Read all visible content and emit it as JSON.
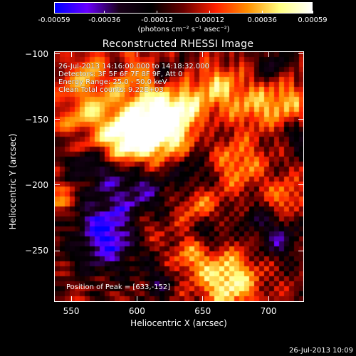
{
  "colorbar": {
    "colors": [
      "#0000ff",
      "#6a00ff",
      "#1a001a",
      "#000000",
      "#6a0000",
      "#ff2000",
      "#ff9000",
      "#ffff80",
      "#ffffff"
    ],
    "min": -0.00059,
    "max": 0.00059,
    "ticks": [
      {
        "value": -0.00059,
        "label": "-0.00059"
      },
      {
        "value": -0.00036,
        "label": "-0.00036"
      },
      {
        "value": -0.00012,
        "label": "-0.00012"
      },
      {
        "value": 0.00012,
        "label": "0.00012"
      },
      {
        "value": 0.00036,
        "label": "0.00036"
      },
      {
        "value": 0.00059,
        "label": "0.00059"
      }
    ],
    "units": "(photons cm⁻² s⁻¹ asec⁻²)"
  },
  "title": "Reconstructed RHESSI Image",
  "info": {
    "time_range": "26-Jul-2013 14:16:00.000 to 14:18:32.000",
    "detectors": "Detectors: 3F 5F 6F 7F 8F 9F, Att 0",
    "energy_range": "Energy Range: 25.0 - 50.0 keV",
    "clean": "Clean     Total counts: 9.22E+03"
  },
  "peak": {
    "label": "Position of Peak = [633,-152]"
  },
  "axes": {
    "xlabel": "Heliocentric X (arcsec)",
    "ylabel": "Heliocentric Y (arcsec)",
    "xlim": [
      537,
      727
    ],
    "ylim": [
      -289,
      -98
    ],
    "xticks": [
      {
        "value": 550,
        "label": "550"
      },
      {
        "value": 600,
        "label": "600"
      },
      {
        "value": 650,
        "label": "650"
      },
      {
        "value": 700,
        "label": "700"
      }
    ],
    "yticks": [
      {
        "value": -100,
        "label": "−100"
      },
      {
        "value": -150,
        "label": "−150"
      },
      {
        "value": -200,
        "label": "−200"
      },
      {
        "value": -250,
        "label": "−250"
      }
    ]
  },
  "footer": {
    "date": "26-Jul-2013 10:09"
  }
}
